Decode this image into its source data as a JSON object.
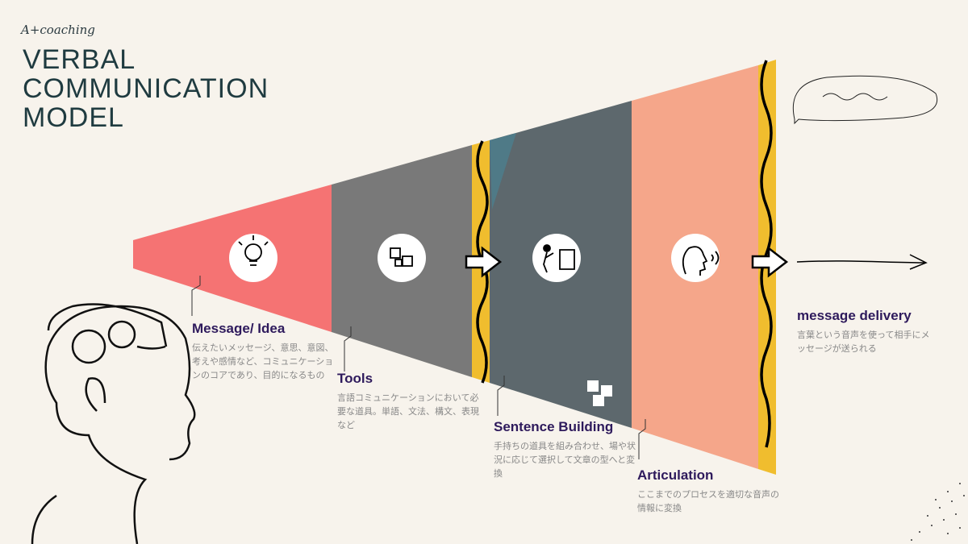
{
  "brand": "A+coaching",
  "title": [
    "VERBAL",
    "COMMUNICATION",
    "MODEL"
  ],
  "stages": [
    {
      "title": "Message/ Idea",
      "desc": "伝えたいメッセージ、意思、意図、考えや感情など、コミュニケーションのコアであり、目的になるもの",
      "icon": "lightbulb-icon",
      "color": "#f57373"
    },
    {
      "title": "Tools",
      "desc": "言語コミュニケーションにおいて必要な道具。単語、文法、構文、表現など",
      "icon": "puzzle-icon",
      "color": "#797979"
    },
    {
      "title": "Sentence Building",
      "desc": "手持ちの道具を組み合わせ、場や状況に応じて選択して文章の型へと変換",
      "icon": "person-building-puzzle-icon",
      "color": "#5d686d"
    },
    {
      "title": "Articulation",
      "desc": "ここまでのプロセスを適切な音声の情報に変換",
      "icon": "speaking-face-icon",
      "color": "#f5a68a"
    },
    {
      "title": "message delivery",
      "desc": "言葉という音声を使って相手にメッセージが送られる",
      "icon": "arrow-right-icon"
    }
  ],
  "colors": {
    "divider": "#f0bd2e",
    "heading": "#2e1a5c",
    "title": "#1f3b40"
  }
}
